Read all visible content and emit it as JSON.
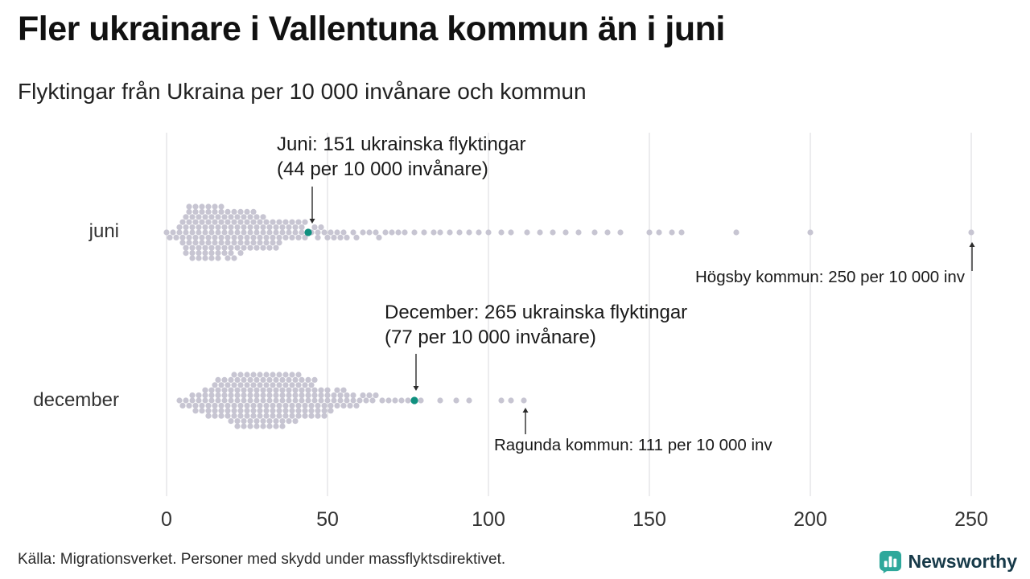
{
  "title": "Fler ukrainare i Vallentuna kommun än i juni",
  "subtitle": "Flyktingar från Ukraina per 10 000 invånare och kommun",
  "source": "Källa: Migrationsverket. Personer med skydd under massflyktsdirektivet.",
  "brand": {
    "name": "Newsworthy",
    "icon_color": "#2ea89b",
    "text_color": "#173a49"
  },
  "chart_data": {
    "type": "scatter",
    "variant": "beeswarm",
    "title": "Fler ukrainare i Vallentuna kommun än i juni",
    "subtitle": "Flyktingar från Ukraina per 10 000 invånare och kommun",
    "xlabel": "",
    "ylabel": "",
    "x_ticks": [
      0,
      50,
      100,
      150,
      200,
      250
    ],
    "xlim": [
      0,
      260
    ],
    "grid": "vertical",
    "dot_color": "#c7c5d2",
    "highlight_color": "#10907f",
    "rows": [
      {
        "label": "juni",
        "highlight": {
          "value": 44,
          "label_line1": "Juni: 151 ukrainska flyktingar",
          "label_line2": "(44 per 10 000 invånare)"
        },
        "outlier": {
          "value": 250,
          "label": "Högsby kommun: 250 per 10 000 inv"
        },
        "values": [
          0,
          1,
          2,
          3,
          4,
          4,
          5,
          5,
          5,
          6,
          6,
          6,
          6,
          6,
          7,
          7,
          7,
          7,
          7,
          8,
          8,
          8,
          8,
          8,
          8,
          9,
          9,
          9,
          9,
          9,
          10,
          10,
          10,
          10,
          10,
          10,
          11,
          11,
          11,
          11,
          11,
          12,
          12,
          12,
          12,
          12,
          12,
          13,
          13,
          13,
          13,
          13,
          14,
          14,
          14,
          14,
          14,
          14,
          15,
          15,
          15,
          15,
          15,
          16,
          16,
          16,
          16,
          16,
          16,
          17,
          17,
          17,
          17,
          17,
          18,
          18,
          18,
          18,
          18,
          19,
          19,
          19,
          19,
          19,
          20,
          20,
          20,
          20,
          20,
          21,
          21,
          21,
          21,
          21,
          22,
          22,
          22,
          22,
          23,
          23,
          23,
          23,
          23,
          24,
          24,
          24,
          24,
          25,
          25,
          25,
          25,
          26,
          26,
          26,
          26,
          27,
          27,
          27,
          27,
          28,
          28,
          28,
          28,
          29,
          29,
          29,
          30,
          30,
          30,
          30,
          31,
          31,
          31,
          32,
          32,
          32,
          33,
          33,
          33,
          34,
          34,
          34,
          35,
          35,
          35,
          36,
          36,
          37,
          37,
          38,
          38,
          39,
          39,
          40,
          40,
          41,
          41,
          42,
          42,
          43,
          43,
          45,
          46,
          47,
          47,
          48,
          49,
          50,
          51,
          52,
          53,
          54,
          55,
          56,
          58,
          59,
          61,
          63,
          65,
          66,
          68,
          70,
          72,
          74,
          77,
          80,
          83,
          85,
          88,
          91,
          94,
          97,
          100,
          104,
          107,
          112,
          116,
          120,
          124,
          128,
          133,
          137,
          141,
          150,
          153,
          157,
          160,
          177,
          200,
          250
        ]
      },
      {
        "label": "december",
        "highlight": {
          "value": 77,
          "label_line1": "December: 265 ukrainska flyktingar",
          "label_line2": "(77 per 10 000 invånare)"
        },
        "outlier": {
          "value": 111,
          "label": "Ragunda kommun: 111 per 10 000 inv"
        },
        "values": [
          4,
          5,
          6,
          7,
          8,
          8,
          9,
          9,
          10,
          10,
          11,
          11,
          12,
          12,
          12,
          13,
          13,
          13,
          14,
          14,
          14,
          15,
          15,
          15,
          15,
          16,
          16,
          16,
          16,
          17,
          17,
          17,
          17,
          18,
          18,
          18,
          18,
          19,
          19,
          19,
          19,
          20,
          20,
          20,
          20,
          20,
          21,
          21,
          21,
          21,
          21,
          22,
          22,
          22,
          22,
          22,
          22,
          23,
          23,
          23,
          23,
          23,
          24,
          24,
          24,
          24,
          24,
          24,
          25,
          25,
          25,
          25,
          25,
          26,
          26,
          26,
          26,
          26,
          26,
          27,
          27,
          27,
          27,
          27,
          28,
          28,
          28,
          28,
          28,
          28,
          29,
          29,
          29,
          29,
          29,
          30,
          30,
          30,
          30,
          30,
          30,
          31,
          31,
          31,
          31,
          31,
          32,
          32,
          32,
          32,
          32,
          32,
          33,
          33,
          33,
          33,
          33,
          34,
          34,
          34,
          34,
          34,
          34,
          35,
          35,
          35,
          35,
          35,
          36,
          36,
          36,
          36,
          36,
          36,
          37,
          37,
          37,
          37,
          37,
          38,
          38,
          38,
          38,
          38,
          39,
          39,
          39,
          39,
          39,
          40,
          40,
          40,
          40,
          40,
          41,
          41,
          41,
          41,
          41,
          42,
          42,
          42,
          42,
          43,
          43,
          43,
          43,
          44,
          44,
          44,
          44,
          45,
          45,
          45,
          45,
          46,
          46,
          46,
          46,
          47,
          47,
          47,
          48,
          48,
          48,
          49,
          49,
          49,
          50,
          50,
          50,
          51,
          51,
          52,
          52,
          53,
          53,
          54,
          54,
          55,
          55,
          56,
          56,
          57,
          58,
          58,
          59,
          60,
          61,
          62,
          63,
          64,
          65,
          67,
          69,
          71,
          73,
          75,
          79,
          85,
          90,
          94,
          104,
          107,
          111
        ]
      }
    ]
  }
}
